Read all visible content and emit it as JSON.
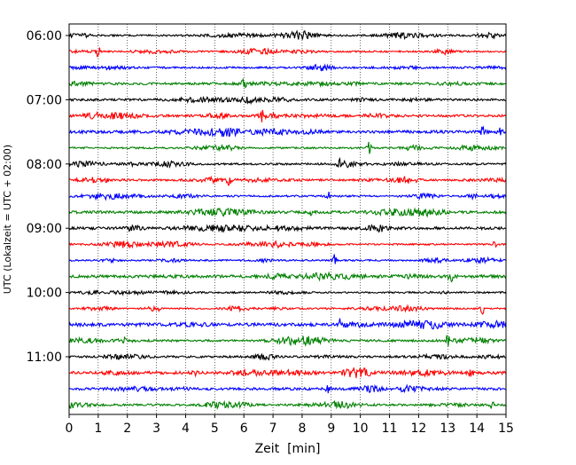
{
  "chart_data": {
    "type": "line",
    "title": "",
    "xlabel": "Zeit  [min]",
    "ylabel": "UTC (Lokalzeit = UTC + 02:00)",
    "xlim": [
      0,
      15
    ],
    "x_ticks": [
      0,
      1,
      2,
      3,
      4,
      5,
      6,
      7,
      8,
      9,
      10,
      11,
      12,
      13,
      14,
      15
    ],
    "x_tick_labels": [
      "0",
      "1",
      "2",
      "3",
      "4",
      "5",
      "6",
      "7",
      "8",
      "9",
      "10",
      "11",
      "12",
      "13",
      "14",
      "15"
    ],
    "vertical_grid": "dotted",
    "y_tick_labels": [
      "06:00",
      "07:00",
      "08:00",
      "09:00",
      "10:00",
      "11:00"
    ],
    "trace_start_times": [
      "06:00",
      "06:15",
      "06:30",
      "06:45",
      "07:00",
      "07:15",
      "07:30",
      "07:45",
      "08:00",
      "08:15",
      "08:30",
      "08:45",
      "09:00",
      "09:15",
      "09:30",
      "09:45",
      "10:00",
      "10:15",
      "10:30",
      "10:45",
      "11:00",
      "11:15",
      "11:30",
      "11:45"
    ],
    "trace_minutes": 15,
    "color_cycle": [
      "#000000",
      "#ff0000",
      "#0000ff",
      "#008000"
    ],
    "events": [
      {
        "trace": "06:15",
        "minute": 1.0
      },
      {
        "trace": "06:45",
        "minute": 6.0
      },
      {
        "trace": "07:15",
        "minute": 6.6
      },
      {
        "trace": "07:30",
        "minute": 14.2
      },
      {
        "trace": "07:30",
        "minute": 14.8
      },
      {
        "trace": "07:45",
        "minute": 10.3
      },
      {
        "trace": "08:00",
        "minute": 9.3
      },
      {
        "trace": "08:15",
        "minute": 5.5
      },
      {
        "trace": "08:30",
        "minute": 8.9
      },
      {
        "trace": "08:45",
        "minute": 8.3
      },
      {
        "trace": "09:15",
        "minute": 14.6
      },
      {
        "trace": "09:30",
        "minute": 9.1
      },
      {
        "trace": "09:45",
        "minute": 13.1
      },
      {
        "trace": "10:15",
        "minute": 14.2
      },
      {
        "trace": "10:30",
        "minute": 9.3
      },
      {
        "trace": "10:45",
        "minute": 13.0
      },
      {
        "trace": "11:15",
        "minute": 4.3
      },
      {
        "trace": "11:15",
        "minute": 13.8
      },
      {
        "trace": "11:30",
        "minute": 8.9
      },
      {
        "trace": "11:45",
        "minute": 14.5
      }
    ]
  }
}
